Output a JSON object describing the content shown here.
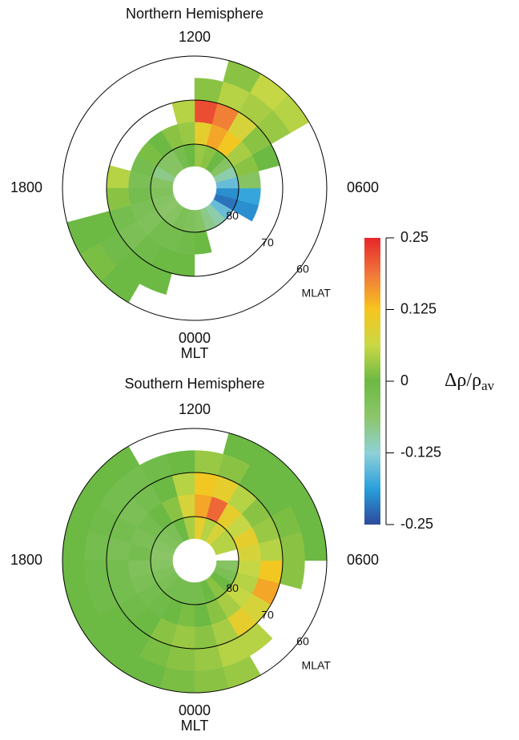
{
  "chart_data": [
    {
      "type": "polar-map",
      "title": "Northern Hemisphere",
      "theta_label": "MLT",
      "r_label": "MLAT",
      "rlim": [
        90,
        60
      ],
      "rings": [
        80,
        70,
        60
      ],
      "mlt_labels": [
        {
          "value": 12,
          "label": "1200"
        },
        {
          "value": 18,
          "label": "1800"
        },
        {
          "value": 6,
          "label": "0600"
        },
        {
          "value": 0,
          "label": "0000"
        }
      ],
      "mlt_edges": [
        0,
        1,
        2,
        3,
        4,
        5,
        6,
        7,
        8,
        9,
        10,
        11,
        12,
        13,
        14,
        15,
        16,
        17,
        18,
        19,
        20,
        21,
        22,
        23,
        24
      ],
      "mlat_edges": [
        60,
        65,
        70,
        75,
        80,
        85,
        90
      ],
      "values": [
        [
          null,
          null,
          null,
          0,
          -0.05,
          null
        ],
        [
          null,
          null,
          null,
          null,
          -0.08,
          null
        ],
        [
          null,
          null,
          null,
          null,
          -0.1,
          null
        ],
        [
          null,
          null,
          null,
          null,
          -0.15,
          null
        ],
        [
          null,
          null,
          null,
          -0.2,
          -0.22,
          null
        ],
        [
          null,
          null,
          null,
          -0.18,
          -0.2,
          null
        ],
        [
          null,
          null,
          null,
          -0.05,
          -0.15,
          null
        ],
        [
          null,
          null,
          0,
          0.02,
          -0.1,
          null
        ],
        [
          0.05,
          0.03,
          0.02,
          0.04,
          -0.05,
          null
        ],
        [
          0.06,
          0.04,
          0.08,
          0.12,
          0,
          null
        ],
        [
          0.02,
          0.05,
          0.18,
          0.15,
          0.02,
          null
        ],
        [
          null,
          0.02,
          0.22,
          0.1,
          0.03,
          null
        ],
        [
          null,
          null,
          0.05,
          0.03,
          0,
          null
        ],
        [
          null,
          null,
          null,
          0.02,
          -0.02,
          null
        ],
        [
          null,
          null,
          null,
          0,
          -0.05,
          null
        ],
        [
          null,
          null,
          null,
          0.01,
          -0.05,
          null
        ],
        [
          null,
          null,
          null,
          -0.02,
          -0.08,
          null
        ],
        [
          null,
          null,
          0.05,
          -0.03,
          -0.05,
          null
        ],
        [
          null,
          null,
          0.02,
          -0.02,
          -0.04,
          null
        ],
        [
          0,
          0,
          -0.02,
          -0.03,
          -0.05,
          null
        ],
        [
          0.01,
          -0.01,
          -0.03,
          -0.04,
          -0.06,
          null
        ],
        [
          0,
          0,
          -0.01,
          -0.02,
          -0.05,
          null
        ],
        [
          null,
          0,
          0,
          -0.02,
          -0.03,
          null
        ],
        [
          null,
          null,
          0,
          -0.01,
          -0.04,
          null
        ]
      ]
    },
    {
      "type": "polar-map",
      "title": "Southern Hemisphere",
      "theta_label": "MLT",
      "r_label": "MLAT",
      "rlim": [
        90,
        60
      ],
      "rings": [
        80,
        70,
        60
      ],
      "mlt_labels": [
        {
          "value": 12,
          "label": "1200"
        },
        {
          "value": 18,
          "label": "1800"
        },
        {
          "value": 6,
          "label": "0600"
        },
        {
          "value": 0,
          "label": "0000"
        }
      ],
      "mlt_edges": [
        0,
        1,
        2,
        3,
        4,
        5,
        6,
        7,
        8,
        9,
        10,
        11,
        12,
        13,
        14,
        15,
        16,
        17,
        18,
        19,
        20,
        21,
        22,
        23,
        24
      ],
      "mlat_edges": [
        60,
        65,
        70,
        75,
        80,
        85,
        90
      ],
      "values": [
        [
          0.02,
          0.03,
          0.02,
          0,
          -0.02,
          null
        ],
        [
          0.03,
          0.05,
          0.04,
          0.02,
          0,
          null
        ],
        [
          null,
          0.05,
          0.1,
          0.04,
          0.02,
          null
        ],
        [
          null,
          null,
          0.08,
          0.06,
          0,
          null
        ],
        [
          null,
          null,
          0.15,
          0.05,
          -0.03,
          null
        ],
        [
          null,
          0.02,
          0.12,
          0.06,
          -0.05,
          null
        ],
        [
          0,
          0.02,
          0.05,
          0.08,
          null,
          null
        ],
        [
          0,
          0.01,
          0.03,
          0.1,
          0.05,
          null
        ],
        [
          0,
          0,
          0.02,
          0.06,
          0.05,
          null
        ],
        [
          0,
          0,
          0.05,
          0.1,
          0.08,
          null
        ],
        [
          0,
          0.02,
          0.1,
          0.2,
          0.05,
          null
        ],
        [
          null,
          0.03,
          0.12,
          0.15,
          0.1,
          null
        ],
        [
          null,
          0,
          0.05,
          0.08,
          0.04,
          null
        ],
        [
          null,
          -0.01,
          0,
          0.02,
          0,
          null
        ],
        [
          0,
          -0.02,
          -0.02,
          0,
          -0.03,
          null
        ],
        [
          0,
          -0.02,
          -0.03,
          -0.02,
          -0.04,
          null
        ],
        [
          0,
          -0.01,
          -0.02,
          -0.03,
          -0.05,
          null
        ],
        [
          0,
          -0.02,
          -0.03,
          -0.02,
          -0.06,
          null
        ],
        [
          0,
          -0.01,
          -0.02,
          -0.04,
          -0.05,
          null
        ],
        [
          0,
          -0.01,
          -0.02,
          -0.03,
          -0.04,
          null
        ],
        [
          0,
          0,
          -0.01,
          -0.02,
          -0.03,
          null
        ],
        [
          0,
          0,
          0,
          -0.01,
          -0.02,
          null
        ],
        [
          0,
          0.01,
          0.02,
          0,
          -0.02,
          null
        ],
        [
          0.01,
          0.02,
          0.03,
          0.01,
          -0.02,
          null
        ]
      ]
    }
  ],
  "colorbar": {
    "clim": [
      -0.25,
      0.25
    ],
    "ticks": [
      0.25,
      0.125,
      0,
      -0.125,
      -0.25
    ],
    "colormap": [
      "#2c4a9c",
      "#2a9fdc",
      "#8fd1d6",
      "#8cc66a",
      "#6cb944",
      "#c9d845",
      "#f7c51e",
      "#f0773a",
      "#e6262b"
    ],
    "label": "Δρ/ρ",
    "label_sub": "av"
  }
}
